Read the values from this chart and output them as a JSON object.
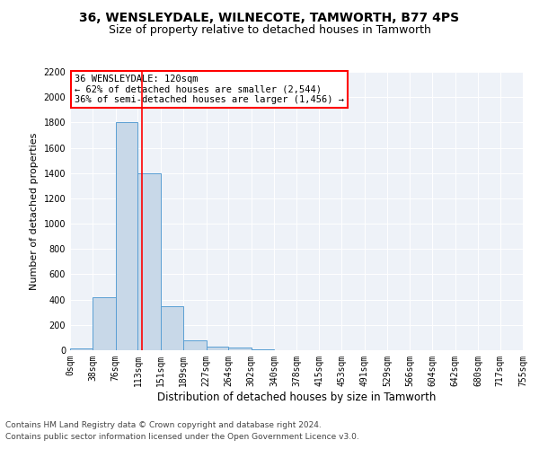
{
  "title": "36, WENSLEYDALE, WILNECOTE, TAMWORTH, B77 4PS",
  "subtitle": "Size of property relative to detached houses in Tamworth",
  "xlabel": "Distribution of detached houses by size in Tamworth",
  "ylabel": "Number of detached properties",
  "footer_line1": "Contains HM Land Registry data © Crown copyright and database right 2024.",
  "footer_line2": "Contains public sector information licensed under the Open Government Licence v3.0.",
  "annotation_title": "36 WENSLEYDALE: 120sqm",
  "annotation_line1": "← 62% of detached houses are smaller (2,544)",
  "annotation_line2": "36% of semi-detached houses are larger (1,456) →",
  "bin_edges": [
    0,
    38,
    76,
    113,
    151,
    189,
    227,
    264,
    302,
    340,
    378,
    415,
    453,
    491,
    529,
    566,
    604,
    642,
    680,
    717,
    755
  ],
  "bar_heights": [
    15,
    420,
    1800,
    1400,
    350,
    80,
    30,
    20,
    5,
    0,
    0,
    0,
    0,
    0,
    0,
    0,
    0,
    0,
    0,
    0
  ],
  "bar_color": "#c8d8e8",
  "bar_edge_color": "#5a9fd4",
  "red_line_x": 120,
  "ylim": [
    0,
    2200
  ],
  "yticks": [
    0,
    200,
    400,
    600,
    800,
    1000,
    1200,
    1400,
    1600,
    1800,
    2000,
    2200
  ],
  "bg_color": "#eef2f8",
  "annotation_box_color": "white",
  "annotation_box_edge": "red",
  "red_line_color": "red",
  "title_fontsize": 10,
  "subtitle_fontsize": 9,
  "axis_label_fontsize": 8,
  "tick_fontsize": 7,
  "annotation_fontsize": 7.5,
  "footer_fontsize": 6.5
}
